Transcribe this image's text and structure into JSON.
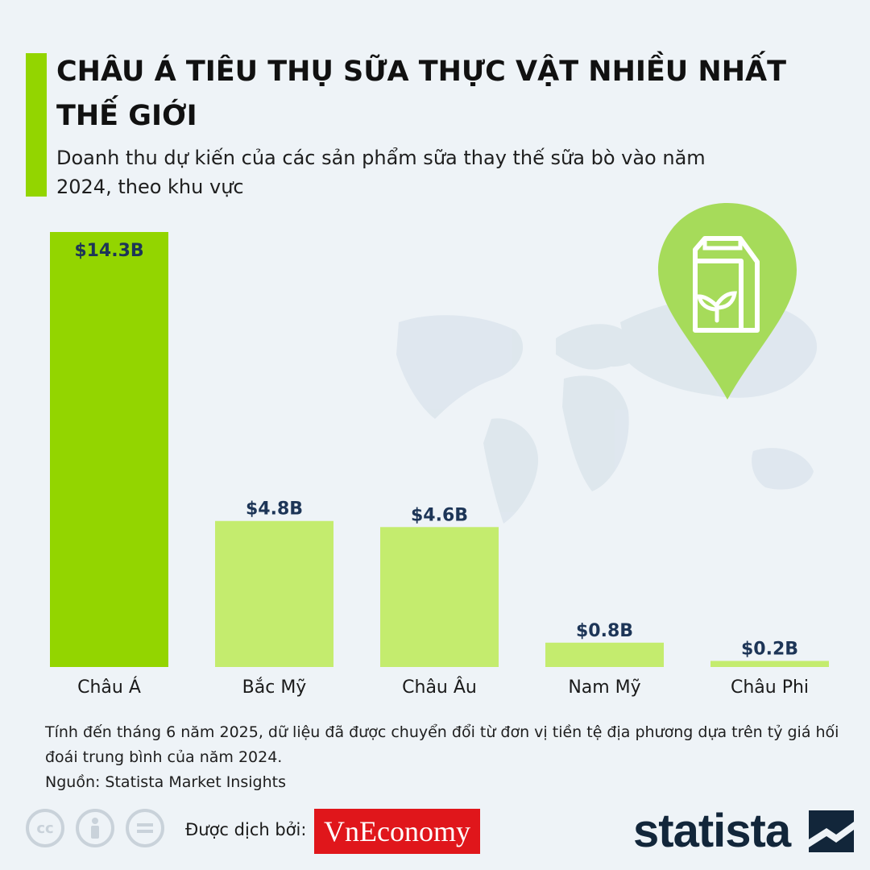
{
  "header": {
    "title": "CHÂU Á TIÊU THỤ SỮA THỰC VẬT NHIỀU NHẤT THẾ GIỚI",
    "subtitle": "Doanh thu dự kiến của các sản phẩm sữa thay thế sữa bò vào năm 2024, theo khu vực"
  },
  "chart_data": {
    "type": "bar",
    "title": "CHÂU Á TIÊU THỤ SỮA THỰC VẬT NHIỀU NHẤT THẾ GIỚI",
    "subtitle": "Doanh thu dự kiến của các sản phẩm sữa thay thế sữa bò vào năm 2024, theo khu vực",
    "categories": [
      "Châu Á",
      "Bắc Mỹ",
      "Châu Âu",
      "Nam Mỹ",
      "Châu Phi"
    ],
    "values": [
      14.3,
      4.8,
      4.6,
      0.8,
      0.2
    ],
    "value_labels": [
      "$14.3B",
      "$4.8B",
      "$4.6B",
      "$0.8B",
      "$0.2B"
    ],
    "unit": "USD billion",
    "xlabel": "",
    "ylabel": "",
    "ylim": [
      0,
      14.3
    ],
    "grid": false,
    "legend": "none",
    "colors": [
      "#93d500",
      "#c4ec6e",
      "#c4ec6e",
      "#c4ec6e",
      "#c4ec6e"
    ]
  },
  "footer": {
    "note": "Tính đến tháng 6 năm 2025, dữ liệu đã được chuyển đổi từ đơn vị tiền tệ địa phương dựa trên tỷ giá hối đoái trung bình của năm 2024.",
    "source": "Nguồn: Statista Market Insights",
    "translated_by": "Được dịch bởi:",
    "vneconomy_logo": "VnEconomy",
    "statista_logo": "statista",
    "license_icons": [
      "cc-icon",
      "attribution-icon",
      "no-derivatives-icon"
    ]
  },
  "colors": {
    "accent": "#93d500",
    "secondary_bar": "#c4ec6e",
    "label_text": "#1d3557",
    "background": "#eef3f7",
    "vne_red": "#e0161b",
    "statista_navy": "#12263a"
  }
}
